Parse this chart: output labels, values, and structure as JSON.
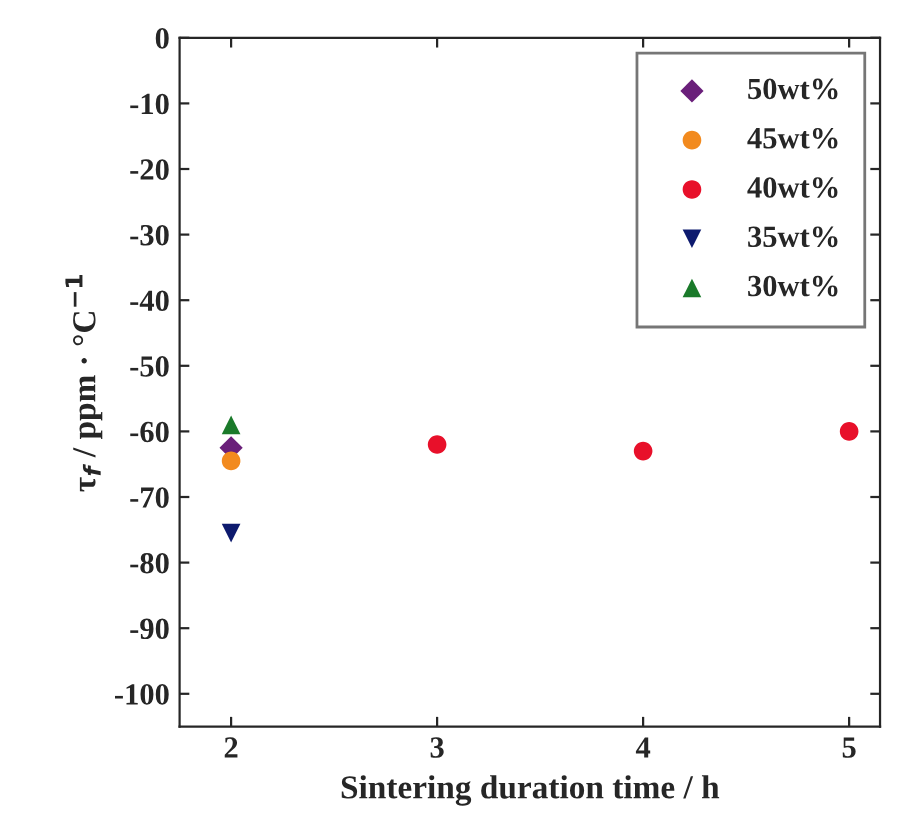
{
  "chart_data": {
    "type": "scatter",
    "xlabel": "Sintering duration time / h",
    "ylabel": "τ$_{f}$ / ppm · °C$^{−1}$",
    "xlim": [
      1.75,
      5.15
    ],
    "xticks": [
      2,
      3,
      4,
      5
    ],
    "ylim": [
      -105,
      0
    ],
    "yticks": [
      -100,
      -90,
      -80,
      -70,
      -60,
      -50,
      -40,
      -30,
      -20,
      -10,
      0
    ],
    "legend": "top right",
    "grid": false,
    "series": [
      {
        "name": "50wt%",
        "color": "#6a1f7a",
        "marker": "diamond",
        "x": [
          2
        ],
        "values": [
          -62.5
        ]
      },
      {
        "name": "45wt%",
        "color": "#f28a1e",
        "marker": "circle",
        "x": [
          2
        ],
        "values": [
          -64.5
        ]
      },
      {
        "name": "40wt%",
        "color": "#e8102a",
        "marker": "circle",
        "x": [
          3,
          4,
          5
        ],
        "values": [
          -62,
          -63,
          -60
        ]
      },
      {
        "name": "35wt%",
        "color": "#0d1a6e",
        "marker": "triangle_down",
        "x": [
          2
        ],
        "values": [
          -75.5
        ]
      },
      {
        "name": "30wt%",
        "color": "#1a7a2a",
        "marker": "triangle",
        "x": [
          2
        ],
        "values": [
          -59
        ]
      }
    ]
  }
}
